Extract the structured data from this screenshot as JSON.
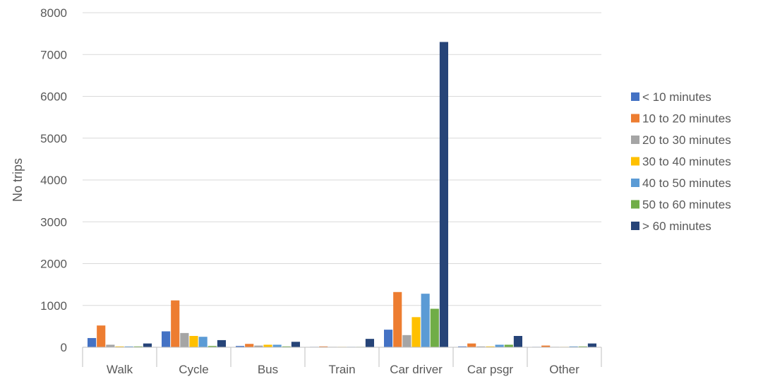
{
  "chart_data": {
    "type": "bar",
    "title": "",
    "xlabel": "",
    "ylabel": "No trips",
    "ylim": [
      0,
      8000
    ],
    "y_ticks": [
      0,
      1000,
      2000,
      3000,
      4000,
      5000,
      6000,
      7000,
      8000
    ],
    "grid": true,
    "legend_position": "right",
    "categories": [
      "Walk",
      "Cycle",
      "Bus",
      "Train",
      "Car driver",
      "Car psgr",
      "Other"
    ],
    "series": [
      {
        "name": "< 10 minutes",
        "color": "#4472C4",
        "values": [
          220,
          380,
          30,
          10,
          420,
          20,
          10
        ]
      },
      {
        "name": "10 to 20 minutes",
        "color": "#ED7D31",
        "values": [
          520,
          1120,
          80,
          20,
          1320,
          90,
          40
        ]
      },
      {
        "name": "20 to 30 minutes",
        "color": "#A5A5A5",
        "values": [
          60,
          340,
          40,
          10,
          290,
          20,
          10
        ]
      },
      {
        "name": "30 to 40 minutes",
        "color": "#FFC000",
        "values": [
          20,
          270,
          60,
          10,
          720,
          20,
          10
        ]
      },
      {
        "name": "40 to 50 minutes",
        "color": "#5B9BD5",
        "values": [
          20,
          250,
          60,
          10,
          1280,
          60,
          20
        ]
      },
      {
        "name": "50 to 60 minutes",
        "color": "#70AD47",
        "values": [
          20,
          30,
          20,
          10,
          920,
          60,
          20
        ]
      },
      {
        "name": "> 60 minutes",
        "color": "#264478",
        "values": [
          90,
          170,
          130,
          200,
          7300,
          270,
          90
        ]
      }
    ]
  }
}
